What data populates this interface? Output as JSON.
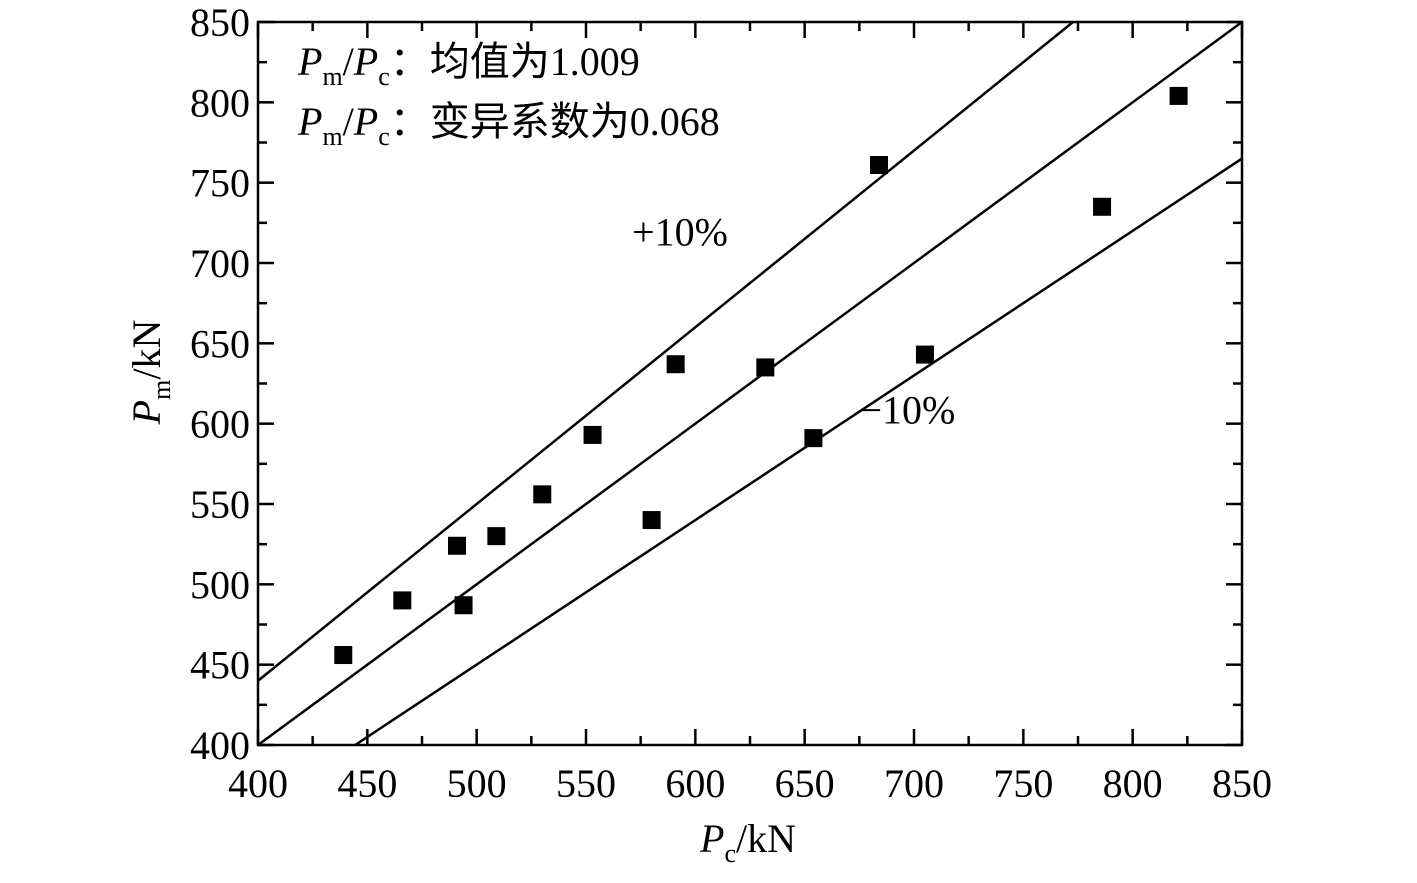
{
  "chart_data": {
    "type": "scatter",
    "title": "",
    "xlabel": {
      "main": "P",
      "sub": "c",
      "unit": "/kN"
    },
    "ylabel": {
      "main": "P",
      "sub": "m",
      "unit": "/kN"
    },
    "xlim": [
      400,
      850
    ],
    "ylim": [
      400,
      850
    ],
    "x_ticks": [
      400,
      450,
      500,
      550,
      600,
      650,
      700,
      750,
      800,
      850
    ],
    "y_ticks": [
      400,
      450,
      500,
      550,
      600,
      650,
      700,
      750,
      800,
      850
    ],
    "x_tick_labels": [
      "400",
      "450",
      "500",
      "550",
      "600",
      "650",
      "700",
      "750",
      "800",
      "850"
    ],
    "y_tick_labels": [
      "400",
      "450",
      "500",
      "550",
      "600",
      "650",
      "700",
      "750",
      "800",
      "850"
    ],
    "grid": false,
    "legend": null,
    "points": [
      {
        "x": 439,
        "y": 456
      },
      {
        "x": 466,
        "y": 490
      },
      {
        "x": 491,
        "y": 524
      },
      {
        "x": 494,
        "y": 487
      },
      {
        "x": 509,
        "y": 530
      },
      {
        "x": 530,
        "y": 556
      },
      {
        "x": 553,
        "y": 593
      },
      {
        "x": 580,
        "y": 540
      },
      {
        "x": 591,
        "y": 637
      },
      {
        "x": 632,
        "y": 635
      },
      {
        "x": 654,
        "y": 591
      },
      {
        "x": 684,
        "y": 761
      },
      {
        "x": 705,
        "y": 643
      },
      {
        "x": 786,
        "y": 735
      },
      {
        "x": 821,
        "y": 804
      }
    ],
    "reference_lines": [
      {
        "slope": 1.1,
        "label": "+10%",
        "label_pos": {
          "x": 593,
          "y": 711
        }
      },
      {
        "slope": 1.0,
        "label": ""
      },
      {
        "slope": 0.9,
        "label": "−10%",
        "label_pos": {
          "x": 697,
          "y": 600
        }
      }
    ],
    "stats_lines": [
      {
        "p1": "P",
        "s1": "m",
        "slash": "/",
        "p2": "P",
        "s2": "c",
        "text": "：均值为1.009"
      },
      {
        "p1": "P",
        "s1": "m",
        "slash": "/",
        "p2": "P",
        "s2": "c",
        "text": "：变异系数为0.068"
      }
    ]
  }
}
